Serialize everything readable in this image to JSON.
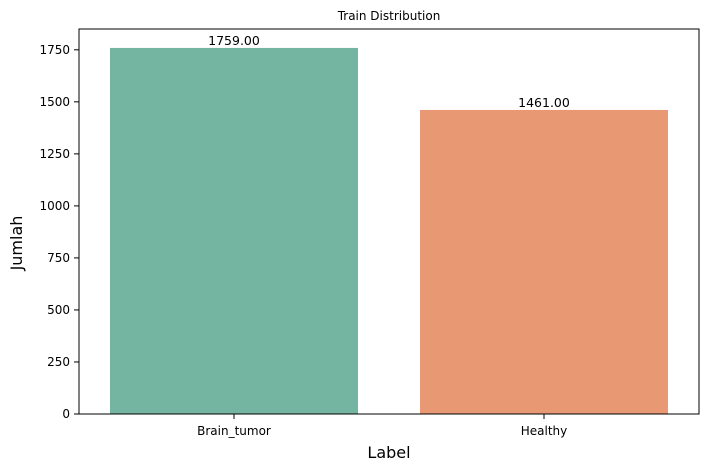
{
  "chart_data": {
    "type": "bar",
    "title": "Train Distribution",
    "xlabel": "Label",
    "ylabel": "Jumlah",
    "categories": [
      "Brain_tumor",
      "Healthy"
    ],
    "values": [
      1759,
      1461
    ],
    "data_labels": [
      "1759.00",
      "1461.00"
    ],
    "colors": [
      "#73b5a0",
      "#e99874"
    ],
    "ylim": [
      0,
      1850
    ],
    "yticks": [
      0,
      250,
      500,
      750,
      1000,
      1250,
      1500,
      1750
    ],
    "ytick_labels": [
      "0",
      "250",
      "500",
      "750",
      "1000",
      "1250",
      "1500",
      "1750"
    ],
    "grid": false,
    "legend": "none"
  }
}
